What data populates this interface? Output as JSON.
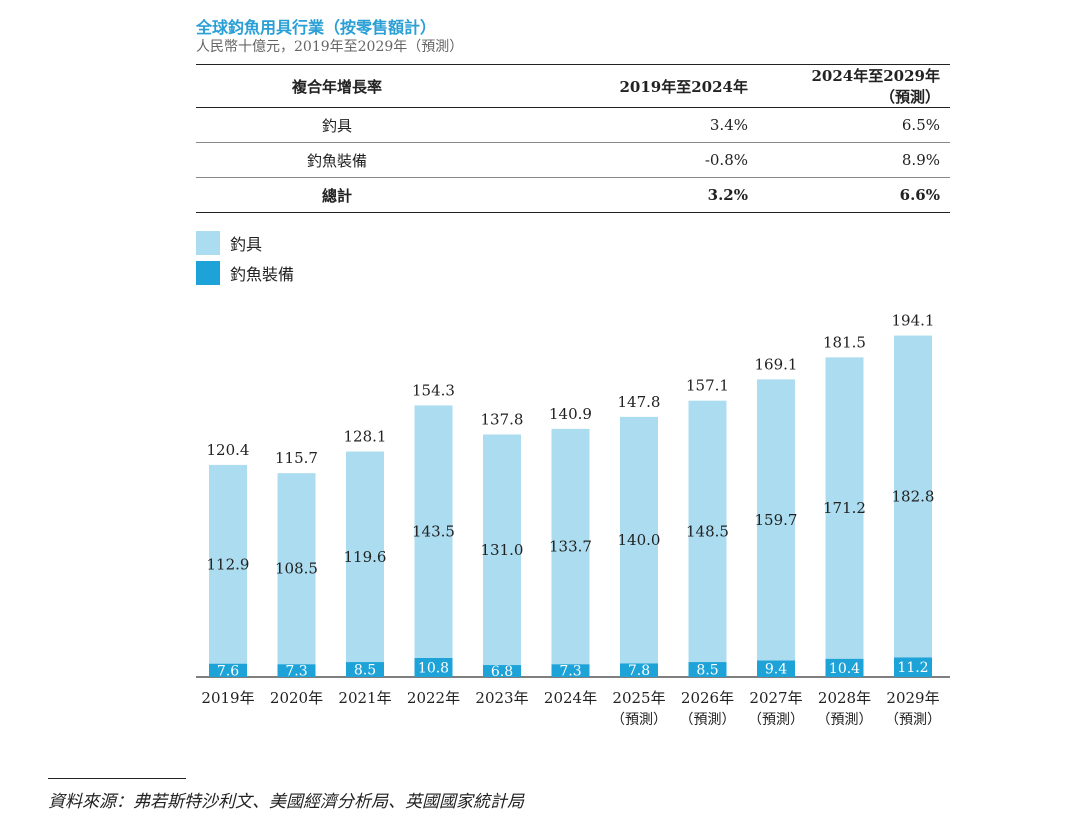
{
  "header": {
    "title": "全球鈞魚用具行業（按零售額計）",
    "subtitle": "人民幣十億元，2019年至2029年（預測）"
  },
  "cagr_table": {
    "headers": [
      "複合年增長率",
      "2019年至2024年",
      "2024年至2029年（預測）"
    ],
    "rows": [
      {
        "label": "釣具",
        "v1": "3.4%",
        "v2": "6.5%"
      },
      {
        "label": "釣魚裝備",
        "v1": "-0.8%",
        "v2": "8.9%"
      },
      {
        "label": "總計",
        "v1": "3.2%",
        "v2": "6.6%"
      }
    ]
  },
  "colors": {
    "tackle": "#abdcef",
    "equipment": "#1ea3d9",
    "title": "#2a9fd6"
  },
  "chart_data": {
    "type": "bar",
    "stacked": true,
    "categories": [
      "2019年",
      "2020年",
      "2021年",
      "2022年",
      "2023年",
      "2024年",
      "2025年",
      "2026年",
      "2027年",
      "2028年",
      "2029年"
    ],
    "category_notes": [
      "",
      "",
      "",
      "",
      "",
      "",
      "（預測）",
      "（預測）",
      "（預測）",
      "（預測）",
      "（預測）"
    ],
    "series": [
      {
        "name": "釣魚裝備",
        "values": [
          7.6,
          7.3,
          8.5,
          10.8,
          6.8,
          7.3,
          7.8,
          8.5,
          9.4,
          10.4,
          11.2
        ]
      },
      {
        "name": "釣具",
        "values": [
          112.9,
          108.5,
          119.6,
          143.5,
          131.0,
          133.7,
          140.0,
          148.5,
          159.7,
          171.2,
          182.8
        ]
      }
    ],
    "totals": [
      120.4,
      115.7,
      128.1,
      154.3,
      137.8,
      140.9,
      147.8,
      157.1,
      169.1,
      181.5,
      194.1
    ],
    "legend_position": "top-left",
    "grid": false,
    "ylim": [
      0,
      200
    ]
  },
  "footer": {
    "source": "資料來源：弗若斯特沙利文、美國經濟分析局、英國國家統計局"
  }
}
